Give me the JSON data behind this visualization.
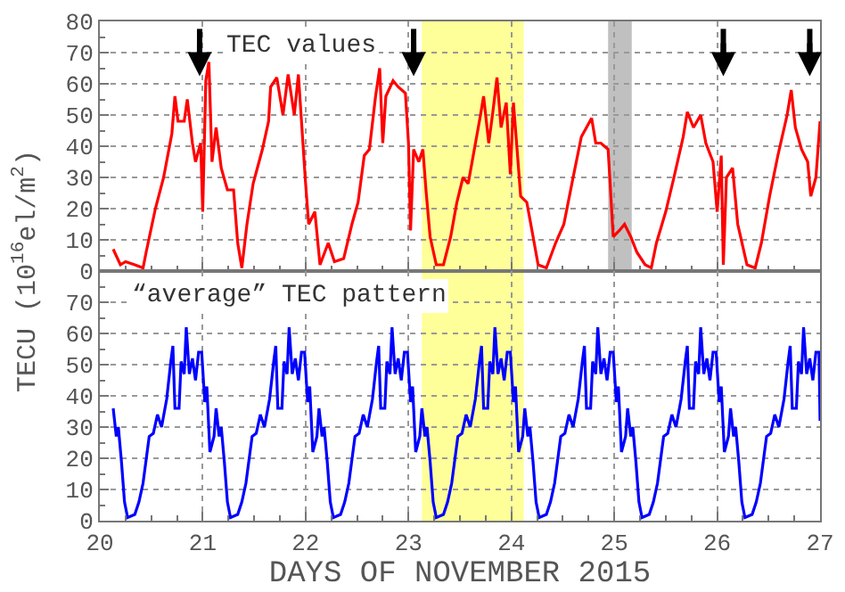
{
  "chart_data": [
    {
      "type": "line",
      "ylabel": "TECU (10$^{16}$el/m$^{2}$)",
      "annotations": [
        "TEC values"
      ],
      "ref_lines": [
        {
          "axis": "x",
          "value": 20.97,
          "color": "#000000"
        },
        {
          "axis": "x",
          "value": 23.05,
          "color": "#000000"
        },
        {
          "axis": "x",
          "value": 26.06,
          "color": "#000000"
        },
        {
          "axis": "x",
          "value": 26.9,
          "color": "#000000"
        }
      ],
      "xlim": [
        20,
        27
      ],
      "xticks": [
        20,
        21,
        22,
        23,
        24,
        25,
        26,
        27
      ],
      "ylim": [
        0,
        80
      ],
      "yticks": [
        0,
        10,
        20,
        30,
        40,
        50,
        60,
        70,
        80
      ],
      "tick_labels": "y",
      "grid": true,
      "line_style": "solid",
      "marker": "none",
      "bands": [
        {
          "axis": "x",
          "from": 23.13,
          "to": 24.12,
          "color": "#ffff99"
        },
        {
          "axis": "x",
          "from": 24.94,
          "to": 25.17,
          "color": "#c0c0c0"
        }
      ],
      "series": [
        {
          "color": "#ff0000",
          "x": [
            20.13,
            20.2,
            20.25,
            20.34,
            20.42,
            20.45,
            20.54,
            20.62,
            20.7,
            20.73,
            20.76,
            20.82,
            20.85,
            20.9,
            20.93,
            20.98,
            21.0,
            21.03,
            21.06,
            21.09,
            21.13,
            21.18,
            21.24,
            21.3,
            21.34,
            21.38,
            21.43,
            21.49,
            21.58,
            21.64,
            21.66,
            21.72,
            21.78,
            21.83,
            21.89,
            21.93,
            21.96,
            22.0,
            22.03,
            22.09,
            22.14,
            22.22,
            22.28,
            22.37,
            22.45,
            22.51,
            22.57,
            22.62,
            22.68,
            22.72,
            22.75,
            22.78,
            22.85,
            22.9,
            22.97,
            23.0,
            23.02,
            23.05,
            23.1,
            23.14,
            23.17,
            23.21,
            23.27,
            23.34,
            23.41,
            23.47,
            23.53,
            23.58,
            23.64,
            23.7,
            23.73,
            23.78,
            23.82,
            23.86,
            23.9,
            23.95,
            23.99,
            24.02,
            24.06,
            24.09,
            24.15,
            24.2,
            24.26,
            24.34,
            24.43,
            24.51,
            24.6,
            24.68,
            24.78,
            24.82,
            24.87,
            24.94,
            24.96,
            24.99,
            25.05,
            25.1,
            25.16,
            25.22,
            25.3,
            25.36,
            25.41,
            25.5,
            25.58,
            25.67,
            25.71,
            25.77,
            25.84,
            25.89,
            25.96,
            26.0,
            26.04,
            26.06,
            26.09,
            26.15,
            26.2,
            26.29,
            26.37,
            26.43,
            26.51,
            26.59,
            26.68,
            26.72,
            26.76,
            26.82,
            26.88,
            26.91,
            26.96,
            27.0
          ],
          "values": [
            7,
            2,
            3,
            2,
            1,
            6,
            20,
            30,
            44,
            56,
            48,
            48,
            55,
            41,
            35,
            41,
            19,
            61,
            67,
            35,
            46,
            33,
            26,
            26,
            9,
            1,
            15,
            28,
            39,
            48,
            59,
            62,
            50,
            63,
            50,
            63,
            48,
            28,
            15,
            19,
            2,
            9,
            3,
            4,
            15,
            22,
            37,
            39,
            56,
            65,
            41,
            56,
            61,
            59,
            57,
            41,
            13,
            39,
            35,
            39,
            26,
            11,
            2,
            2,
            11,
            22,
            30,
            28,
            39,
            50,
            56,
            41,
            51,
            62,
            46,
            54,
            31,
            54,
            37,
            24,
            22,
            13,
            2,
            1,
            9,
            15,
            30,
            43,
            49,
            41,
            41,
            39,
            28,
            11,
            13,
            15,
            11,
            6,
            2,
            1,
            9,
            19,
            30,
            43,
            51,
            46,
            50,
            41,
            35,
            19,
            37,
            2,
            30,
            33,
            15,
            2,
            1,
            9,
            24,
            37,
            50,
            58,
            46,
            39,
            35,
            24,
            30,
            48
          ]
        }
      ]
    },
    {
      "type": "line",
      "xlabel": "DAYS OF NOVEMBER 2015",
      "annotations": [
        "“average” TEC pattern"
      ],
      "xlim": [
        20,
        27
      ],
      "xticks": [
        20,
        21,
        22,
        23,
        24,
        25,
        26,
        27
      ],
      "ylim": [
        0,
        80
      ],
      "yticks": [
        0,
        10,
        20,
        30,
        40,
        50,
        60,
        70
      ],
      "grid": true,
      "line_style": "solid",
      "marker": "none",
      "bands": [
        {
          "axis": "x",
          "from": 23.13,
          "to": 24.12,
          "color": "#ffff99"
        }
      ],
      "series": [
        {
          "color": "#0000ff",
          "x": [
            20.13,
            20.16,
            20.18,
            20.21,
            20.24,
            20.27,
            20.34,
            20.38,
            20.42,
            20.48,
            20.52,
            20.56,
            20.6,
            20.65,
            20.69,
            20.71,
            20.73,
            20.77,
            20.79,
            20.82,
            20.84,
            20.87,
            20.9,
            20.93,
            20.96,
            20.99,
            21.02,
            21.04,
            21.07,
            21.11,
            21.13,
            21.16,
            21.18,
            21.21,
            21.24,
            21.27,
            21.34,
            21.38,
            21.42,
            21.48,
            21.52,
            21.56,
            21.6,
            21.65,
            21.69,
            21.71,
            21.73,
            21.77,
            21.79,
            21.82,
            21.84,
            21.87,
            21.9,
            21.93,
            21.96,
            21.99,
            22.02,
            22.04,
            22.07,
            22.11,
            22.13,
            22.16,
            22.18,
            22.21,
            22.24,
            22.27,
            22.34,
            22.38,
            22.42,
            22.48,
            22.52,
            22.56,
            22.6,
            22.65,
            22.69,
            22.71,
            22.73,
            22.77,
            22.79,
            22.82,
            22.84,
            22.87,
            22.9,
            22.93,
            22.96,
            22.99,
            23.02,
            23.04,
            23.07,
            23.11,
            23.13,
            23.16,
            23.18,
            23.21,
            23.24,
            23.27,
            23.34,
            23.38,
            23.42,
            23.48,
            23.52,
            23.56,
            23.6,
            23.65,
            23.69,
            23.71,
            23.73,
            23.77,
            23.79,
            23.82,
            23.84,
            23.87,
            23.9,
            23.93,
            23.96,
            23.99,
            24.02,
            24.04,
            24.07,
            24.11,
            24.13,
            24.16,
            24.18,
            24.21,
            24.24,
            24.27,
            24.34,
            24.38,
            24.42,
            24.48,
            24.52,
            24.56,
            24.6,
            24.65,
            24.69,
            24.71,
            24.73,
            24.77,
            24.79,
            24.82,
            24.84,
            24.87,
            24.9,
            24.93,
            24.96,
            24.99,
            25.02,
            25.04,
            25.07,
            25.11,
            25.13,
            25.16,
            25.18,
            25.21,
            25.24,
            25.27,
            25.34,
            25.38,
            25.42,
            25.48,
            25.52,
            25.56,
            25.6,
            25.65,
            25.69,
            25.71,
            25.73,
            25.77,
            25.79,
            25.82,
            25.84,
            25.87,
            25.9,
            25.93,
            25.96,
            25.99,
            26.02,
            26.04,
            26.07,
            26.11,
            26.13,
            26.16,
            26.18,
            26.21,
            26.24,
            26.27,
            26.34,
            26.38,
            26.42,
            26.48,
            26.52,
            26.56,
            26.6,
            26.65,
            26.69,
            26.71,
            26.73,
            26.77,
            26.79,
            26.82,
            26.84,
            26.87,
            26.9,
            26.93,
            26.96,
            26.99,
            27.0
          ],
          "values": [
            36,
            27,
            30,
            19,
            6,
            1,
            2,
            6,
            12,
            27,
            28,
            34,
            30,
            39,
            51,
            56,
            36,
            36,
            51,
            47,
            62,
            47,
            52,
            45,
            54,
            54,
            38,
            43,
            22,
            27,
            36,
            27,
            30,
            19,
            6,
            1,
            2,
            6,
            12,
            27,
            28,
            34,
            30,
            39,
            51,
            56,
            36,
            36,
            51,
            47,
            62,
            47,
            52,
            45,
            54,
            54,
            38,
            43,
            22,
            27,
            36,
            27,
            30,
            19,
            6,
            1,
            2,
            6,
            12,
            27,
            28,
            34,
            30,
            39,
            51,
            56,
            36,
            36,
            51,
            47,
            62,
            47,
            52,
            45,
            54,
            54,
            38,
            43,
            22,
            27,
            36,
            27,
            30,
            19,
            6,
            1,
            2,
            6,
            12,
            27,
            28,
            34,
            30,
            39,
            51,
            56,
            36,
            36,
            51,
            47,
            62,
            47,
            52,
            45,
            54,
            54,
            38,
            43,
            22,
            27,
            36,
            27,
            30,
            19,
            6,
            1,
            2,
            6,
            12,
            27,
            28,
            34,
            30,
            39,
            51,
            56,
            36,
            36,
            51,
            47,
            62,
            47,
            52,
            45,
            54,
            54,
            38,
            43,
            22,
            27,
            36,
            27,
            30,
            19,
            6,
            1,
            2,
            6,
            12,
            27,
            28,
            34,
            30,
            39,
            51,
            56,
            36,
            36,
            51,
            47,
            62,
            47,
            52,
            45,
            54,
            54,
            38,
            43,
            22,
            27,
            36,
            27,
            30,
            19,
            6,
            1,
            2,
            6,
            12,
            27,
            28,
            34,
            30,
            39,
            51,
            56,
            36,
            36,
            51,
            47,
            62,
            47,
            52,
            45,
            54,
            54,
            32
          ]
        }
      ]
    }
  ]
}
